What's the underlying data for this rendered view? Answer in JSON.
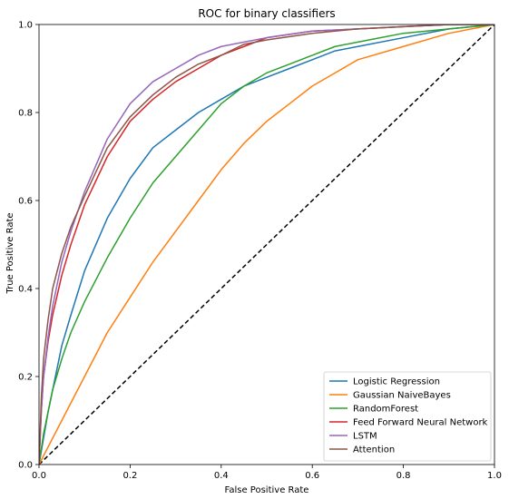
{
  "chart_data": {
    "type": "line",
    "title": "ROC for binary classifiers",
    "xlabel": "False Positive Rate",
    "ylabel": "True Positive Rate",
    "xlim": [
      0,
      1
    ],
    "ylim": [
      0,
      1
    ],
    "xticks": [
      "0.0",
      "0.2",
      "0.4",
      "0.6",
      "0.8",
      "1.0"
    ],
    "yticks": [
      "0.0",
      "0.2",
      "0.4",
      "0.6",
      "0.8",
      "1.0"
    ],
    "grid": false,
    "legend_position": "bottom-right",
    "chance_line": {
      "style": "dashed",
      "color": "#000000",
      "x": [
        0,
        1
      ],
      "y": [
        0,
        1
      ]
    },
    "series": [
      {
        "name": "Logistic Regression",
        "color": "#1f77b4",
        "x": [
          0,
          0.01,
          0.02,
          0.03,
          0.05,
          0.07,
          0.1,
          0.15,
          0.2,
          0.25,
          0.3,
          0.35,
          0.4,
          0.45,
          0.5,
          0.55,
          0.6,
          0.65,
          0.7,
          0.8,
          0.9,
          1.0
        ],
        "y": [
          0,
          0.06,
          0.12,
          0.17,
          0.27,
          0.34,
          0.44,
          0.56,
          0.65,
          0.72,
          0.76,
          0.8,
          0.83,
          0.86,
          0.88,
          0.9,
          0.92,
          0.94,
          0.95,
          0.97,
          0.99,
          1.0
        ]
      },
      {
        "name": "Gaussian NaiveBayes",
        "color": "#ff7f0e",
        "x": [
          0,
          0.05,
          0.1,
          0.15,
          0.2,
          0.25,
          0.3,
          0.35,
          0.4,
          0.45,
          0.5,
          0.55,
          0.6,
          0.65,
          0.7,
          0.8,
          0.9,
          1.0
        ],
        "y": [
          0,
          0.1,
          0.2,
          0.3,
          0.38,
          0.46,
          0.53,
          0.6,
          0.67,
          0.73,
          0.78,
          0.82,
          0.86,
          0.89,
          0.92,
          0.95,
          0.98,
          1.0
        ]
      },
      {
        "name": "RandomForest",
        "color": "#2ca02c",
        "x": [
          0,
          0.01,
          0.02,
          0.03,
          0.05,
          0.07,
          0.1,
          0.15,
          0.2,
          0.25,
          0.3,
          0.35,
          0.4,
          0.45,
          0.5,
          0.55,
          0.6,
          0.65,
          0.7,
          0.8,
          0.9,
          1.0
        ],
        "y": [
          0,
          0.07,
          0.12,
          0.17,
          0.24,
          0.3,
          0.37,
          0.47,
          0.56,
          0.64,
          0.7,
          0.76,
          0.82,
          0.86,
          0.89,
          0.91,
          0.93,
          0.95,
          0.96,
          0.98,
          0.99,
          1.0
        ]
      },
      {
        "name": "Feed Forward Neural Network",
        "color": "#d62728",
        "x": [
          0,
          0.005,
          0.01,
          0.02,
          0.03,
          0.05,
          0.07,
          0.1,
          0.15,
          0.2,
          0.25,
          0.3,
          0.35,
          0.4,
          0.45,
          0.5,
          0.6,
          0.7,
          0.8,
          0.9,
          1.0
        ],
        "y": [
          0,
          0.12,
          0.2,
          0.28,
          0.34,
          0.43,
          0.5,
          0.59,
          0.7,
          0.78,
          0.83,
          0.87,
          0.9,
          0.93,
          0.95,
          0.97,
          0.985,
          0.99,
          0.995,
          1.0,
          1.0
        ]
      },
      {
        "name": "LSTM",
        "color": "#9467bd",
        "x": [
          0,
          0.005,
          0.01,
          0.02,
          0.03,
          0.05,
          0.07,
          0.1,
          0.15,
          0.2,
          0.25,
          0.3,
          0.35,
          0.4,
          0.45,
          0.5,
          0.6,
          0.7,
          0.8,
          0.9,
          1.0
        ],
        "y": [
          0,
          0.12,
          0.2,
          0.29,
          0.36,
          0.46,
          0.53,
          0.62,
          0.74,
          0.82,
          0.87,
          0.9,
          0.93,
          0.95,
          0.96,
          0.97,
          0.985,
          0.99,
          0.995,
          1.0,
          1.0
        ]
      },
      {
        "name": "Attention",
        "color": "#8c564b",
        "x": [
          0,
          0.005,
          0.01,
          0.02,
          0.03,
          0.05,
          0.07,
          0.1,
          0.15,
          0.2,
          0.25,
          0.3,
          0.35,
          0.4,
          0.45,
          0.5,
          0.6,
          0.7,
          0.8,
          0.9,
          1.0
        ],
        "y": [
          0,
          0.15,
          0.24,
          0.33,
          0.4,
          0.48,
          0.54,
          0.61,
          0.72,
          0.79,
          0.84,
          0.88,
          0.91,
          0.93,
          0.955,
          0.965,
          0.98,
          0.99,
          0.995,
          1.0,
          1.0
        ]
      }
    ]
  }
}
